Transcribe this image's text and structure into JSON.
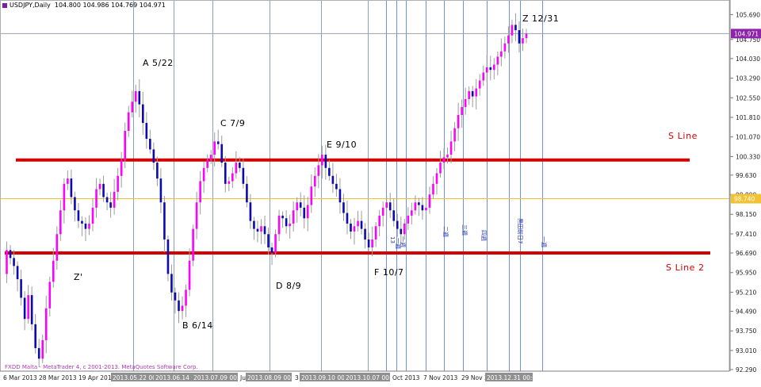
{
  "header": {
    "symbol_text": "USDJPY,Daily",
    "ohlc_text": "104.800 104.986 104.769 104.971"
  },
  "footer": {
    "copyright": "FXDD Malta - MetaTrader 4, c 2001-2013. MetaQuotes Software Corp."
  },
  "colors": {
    "bull": "#ff00ff",
    "bear": "#0a0ab0",
    "wick": "#9b9b9b",
    "support": "#d40000",
    "vline": "#8fa0b8",
    "vline_blue": "#6f8fe8",
    "price_badge": "#8e24aa",
    "yellow_line": "#f1c232"
  },
  "chart_data": {
    "type": "candlestick",
    "symbol": "USDJPY",
    "timeframe": "Daily",
    "ohlc_last": {
      "open": 104.8,
      "high": 104.986,
      "low": 104.769,
      "close": 104.971
    },
    "ylim": [
      92.29,
      106.0
    ],
    "y_ticks": [
      105.69,
      104.75,
      104.03,
      103.29,
      102.55,
      101.81,
      101.07,
      100.33,
      99.63,
      98.89,
      98.15,
      97.41,
      96.69,
      95.95,
      95.21,
      94.49,
      93.75,
      93.01,
      92.29
    ],
    "current_price_label": "104.971",
    "current_price": 104.971,
    "marker_price_label": "98.740",
    "marker_price": 98.74,
    "x_labels": [
      "6 Mar 2013",
      "28 Mar 2013",
      "19 Apr 2013",
      "2013.05.22 00:00",
      "2013.06.14 00:00",
      "2013.07.09 00:00",
      "Jul",
      "2013.08.09 00:00",
      "3",
      "2013.09.10 00:00",
      "2013.10.07 00:00",
      "Oct 2013",
      "7 Nov 2013",
      "29 Nov 20",
      "2013.12.31 00:00"
    ],
    "price_path": [
      95.9,
      96.8,
      96.5,
      96.2,
      95.7,
      95.0,
      94.2,
      95.1,
      94.0,
      93.1,
      92.7,
      93.4,
      94.6,
      95.6,
      96.4,
      97.4,
      98.3,
      99.3,
      99.5,
      98.8,
      98.3,
      97.9,
      97.8,
      97.6,
      97.8,
      98.4,
      99.1,
      99.3,
      98.8,
      98.6,
      98.4,
      99.0,
      99.6,
      100.2,
      101.3,
      102.0,
      102.4,
      102.8,
      102.3,
      101.6,
      101.0,
      100.6,
      100.1,
      99.5,
      98.6,
      97.2,
      95.9,
      95.2,
      94.9,
      94.5,
      94.7,
      95.3,
      96.4,
      97.6,
      98.6,
      99.4,
      99.9,
      100.2,
      100.4,
      100.9,
      100.8,
      100.1,
      99.3,
      99.4,
      99.7,
      100.1,
      99.9,
      99.3,
      98.6,
      97.9,
      97.6,
      97.5,
      97.7,
      97.4,
      96.9,
      96.7,
      97.4,
      98.1,
      98.0,
      97.7,
      97.8,
      98.3,
      98.6,
      98.4,
      98.0,
      98.5,
      99.2,
      99.6,
      100.0,
      100.4,
      99.9,
      99.6,
      99.3,
      99.1,
      98.6,
      98.2,
      97.8,
      97.5,
      97.7,
      97.9,
      97.6,
      97.2,
      96.9,
      97.2,
      97.7,
      98.1,
      98.4,
      98.6,
      98.3,
      97.9,
      97.6,
      97.4,
      97.8,
      98.1,
      98.3,
      98.6,
      98.5,
      98.3,
      98.4,
      98.9,
      99.3,
      99.7,
      100.1,
      100.3,
      100.4,
      100.9,
      101.4,
      101.9,
      102.2,
      102.5,
      102.8,
      102.6,
      102.9,
      103.2,
      103.5,
      103.7,
      103.6,
      103.8,
      104.1,
      104.3,
      104.6,
      104.9,
      105.3,
      105.1,
      104.6,
      104.8,
      104.97
    ],
    "vertical_lines": {
      "labeled_dates": [
        "2013.05.22",
        "2013.06.14",
        "2013.07.09",
        "2013.08.09",
        "2013.09.10",
        "2013.10.07",
        "2013.12.31"
      ],
      "vertical_text": [
        "13",
        "",
        "一週",
        "二週",
        "三週",
        "四週",
        "五週",
        "黒田前日7",
        "一週"
      ]
    },
    "horizontal_lines": [
      {
        "name": "S Line",
        "price": 100.2
      },
      {
        "name": "S Line 2",
        "price": 96.69
      }
    ],
    "annotations": [
      {
        "label": "A 5/22"
      },
      {
        "label": "B 6/14"
      },
      {
        "label": "C 7/9"
      },
      {
        "label": "D 8/9"
      },
      {
        "label": "E 9/10"
      },
      {
        "label": "F 10/7"
      },
      {
        "label": "Z 12/31"
      },
      {
        "label": "Z'"
      }
    ]
  }
}
